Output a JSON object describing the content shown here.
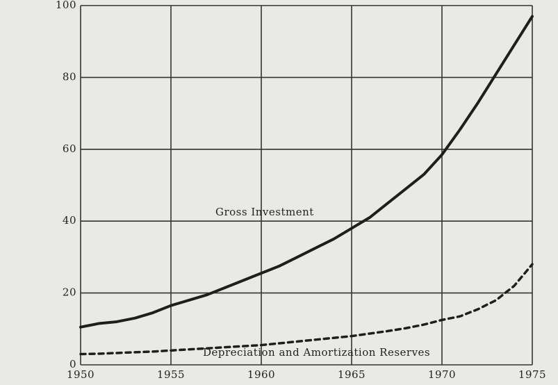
{
  "chart_data": {
    "type": "line",
    "x": [
      1950,
      1951,
      1952,
      1953,
      1954,
      1955,
      1956,
      1957,
      1958,
      1959,
      1960,
      1961,
      1962,
      1963,
      1964,
      1965,
      1966,
      1967,
      1968,
      1969,
      1970,
      1971,
      1972,
      1973,
      1974,
      1975
    ],
    "series": [
      {
        "name": "Gross Investment",
        "color": "#1e1e1e",
        "dash": "solid",
        "values": [
          10.5,
          11.5,
          12,
          13,
          14.5,
          16.5,
          18,
          19.5,
          21.5,
          23.5,
          25.5,
          27.5,
          30,
          32.5,
          35,
          38,
          41,
          45,
          49,
          53,
          58.5,
          65.5,
          73,
          81,
          89,
          97
        ]
      },
      {
        "name": "Depreciation and Amortization Reserves",
        "color": "#1e1e1e",
        "dash": "dashed",
        "values": [
          3,
          3.1,
          3.3,
          3.5,
          3.7,
          4,
          4.3,
          4.6,
          4.9,
          5.2,
          5.5,
          6,
          6.5,
          7,
          7.5,
          8,
          8.7,
          9.4,
          10.2,
          11.2,
          12.5,
          13.5,
          15.5,
          18,
          22,
          28
        ]
      }
    ],
    "xlim": [
      1950,
      1975
    ],
    "xticks": [
      1950,
      1955,
      1960,
      1965,
      1970,
      1975
    ],
    "ylim": [
      0,
      100
    ],
    "yticks": [
      0,
      20,
      40,
      60,
      80,
      100
    ],
    "grid": true
  }
}
